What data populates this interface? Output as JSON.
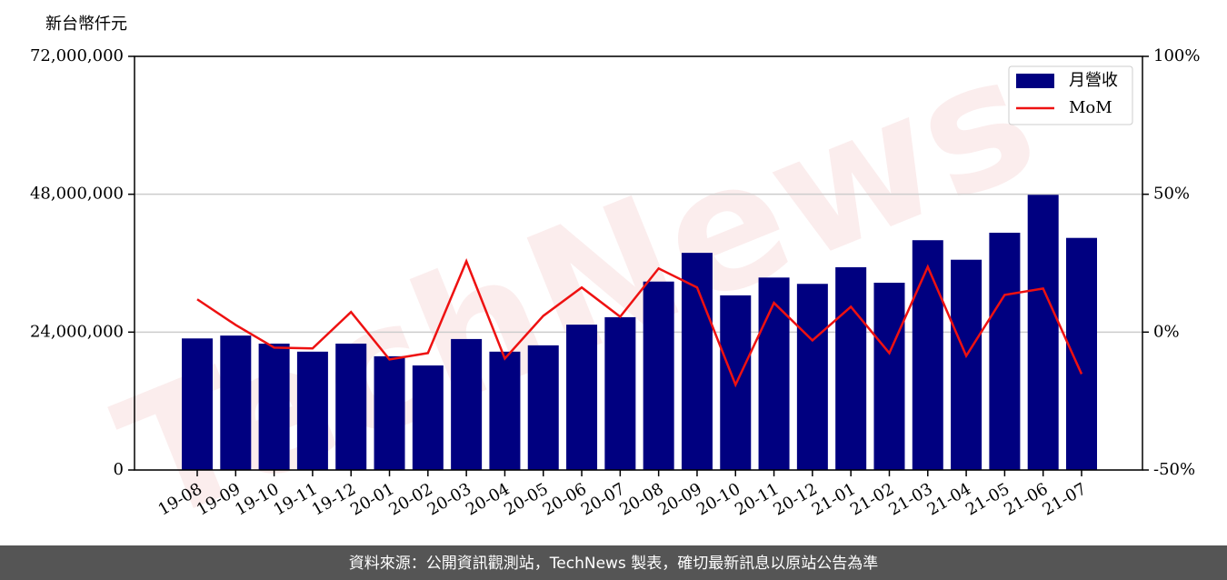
{
  "chart_data": {
    "type": "bar",
    "ylabel": "新台幣仟元",
    "watermark": "TechNews",
    "footer": "資料來源：公開資訊觀測站，TechNews 製表，確切最新訊息以原站公告為準",
    "categories": [
      "19-08",
      "19-09",
      "19-10",
      "19-11",
      "19-12",
      "20-01",
      "20-02",
      "20-03",
      "20-04",
      "20-05",
      "20-06",
      "20-07",
      "20-08",
      "20-09",
      "20-10",
      "20-11",
      "20-12",
      "21-01",
      "21-02",
      "21-03",
      "21-04",
      "21-05",
      "21-06",
      "21-07"
    ],
    "series": [
      {
        "name": "月營收",
        "color": "#000080",
        "type": "bar",
        "values": [
          22900000,
          23400000,
          22000000,
          20600000,
          22000000,
          19800000,
          18200000,
          22800000,
          20600000,
          21700000,
          25300000,
          26600000,
          32800000,
          37800000,
          30400000,
          33500000,
          32400000,
          35300000,
          32600000,
          40000000,
          36600000,
          41300000,
          47900000,
          40400000
        ]
      },
      {
        "name": "MoM",
        "color": "#ee1111",
        "type": "line",
        "axis": "y2",
        "values": [
          11.9,
          2.6,
          -5.6,
          -5.9,
          7.3,
          -9.9,
          -7.6,
          25.7,
          -9.6,
          5.9,
          16.2,
          5.6,
          23.1,
          16.2,
          -19.1,
          10.6,
          -3.0,
          9.2,
          -7.6,
          23.7,
          -8.6,
          13.5,
          15.8,
          -15.2
        ]
      }
    ],
    "ylim": [
      0,
      72000000
    ],
    "yticks": [
      {
        "value": 0,
        "label": "0"
      },
      {
        "value": 24000000,
        "label": "24,000,000"
      },
      {
        "value": 48000000,
        "label": "48,000,000"
      },
      {
        "value": 72000000,
        "label": "72,000,000"
      }
    ],
    "y2lim": [
      -50,
      100
    ],
    "y2ticks": [
      {
        "value": -50,
        "label": "-50%"
      },
      {
        "value": 0,
        "label": "0%"
      },
      {
        "value": 50,
        "label": "50%"
      },
      {
        "value": 100,
        "label": "100%"
      }
    ],
    "grid": true,
    "legend": "upper right"
  }
}
